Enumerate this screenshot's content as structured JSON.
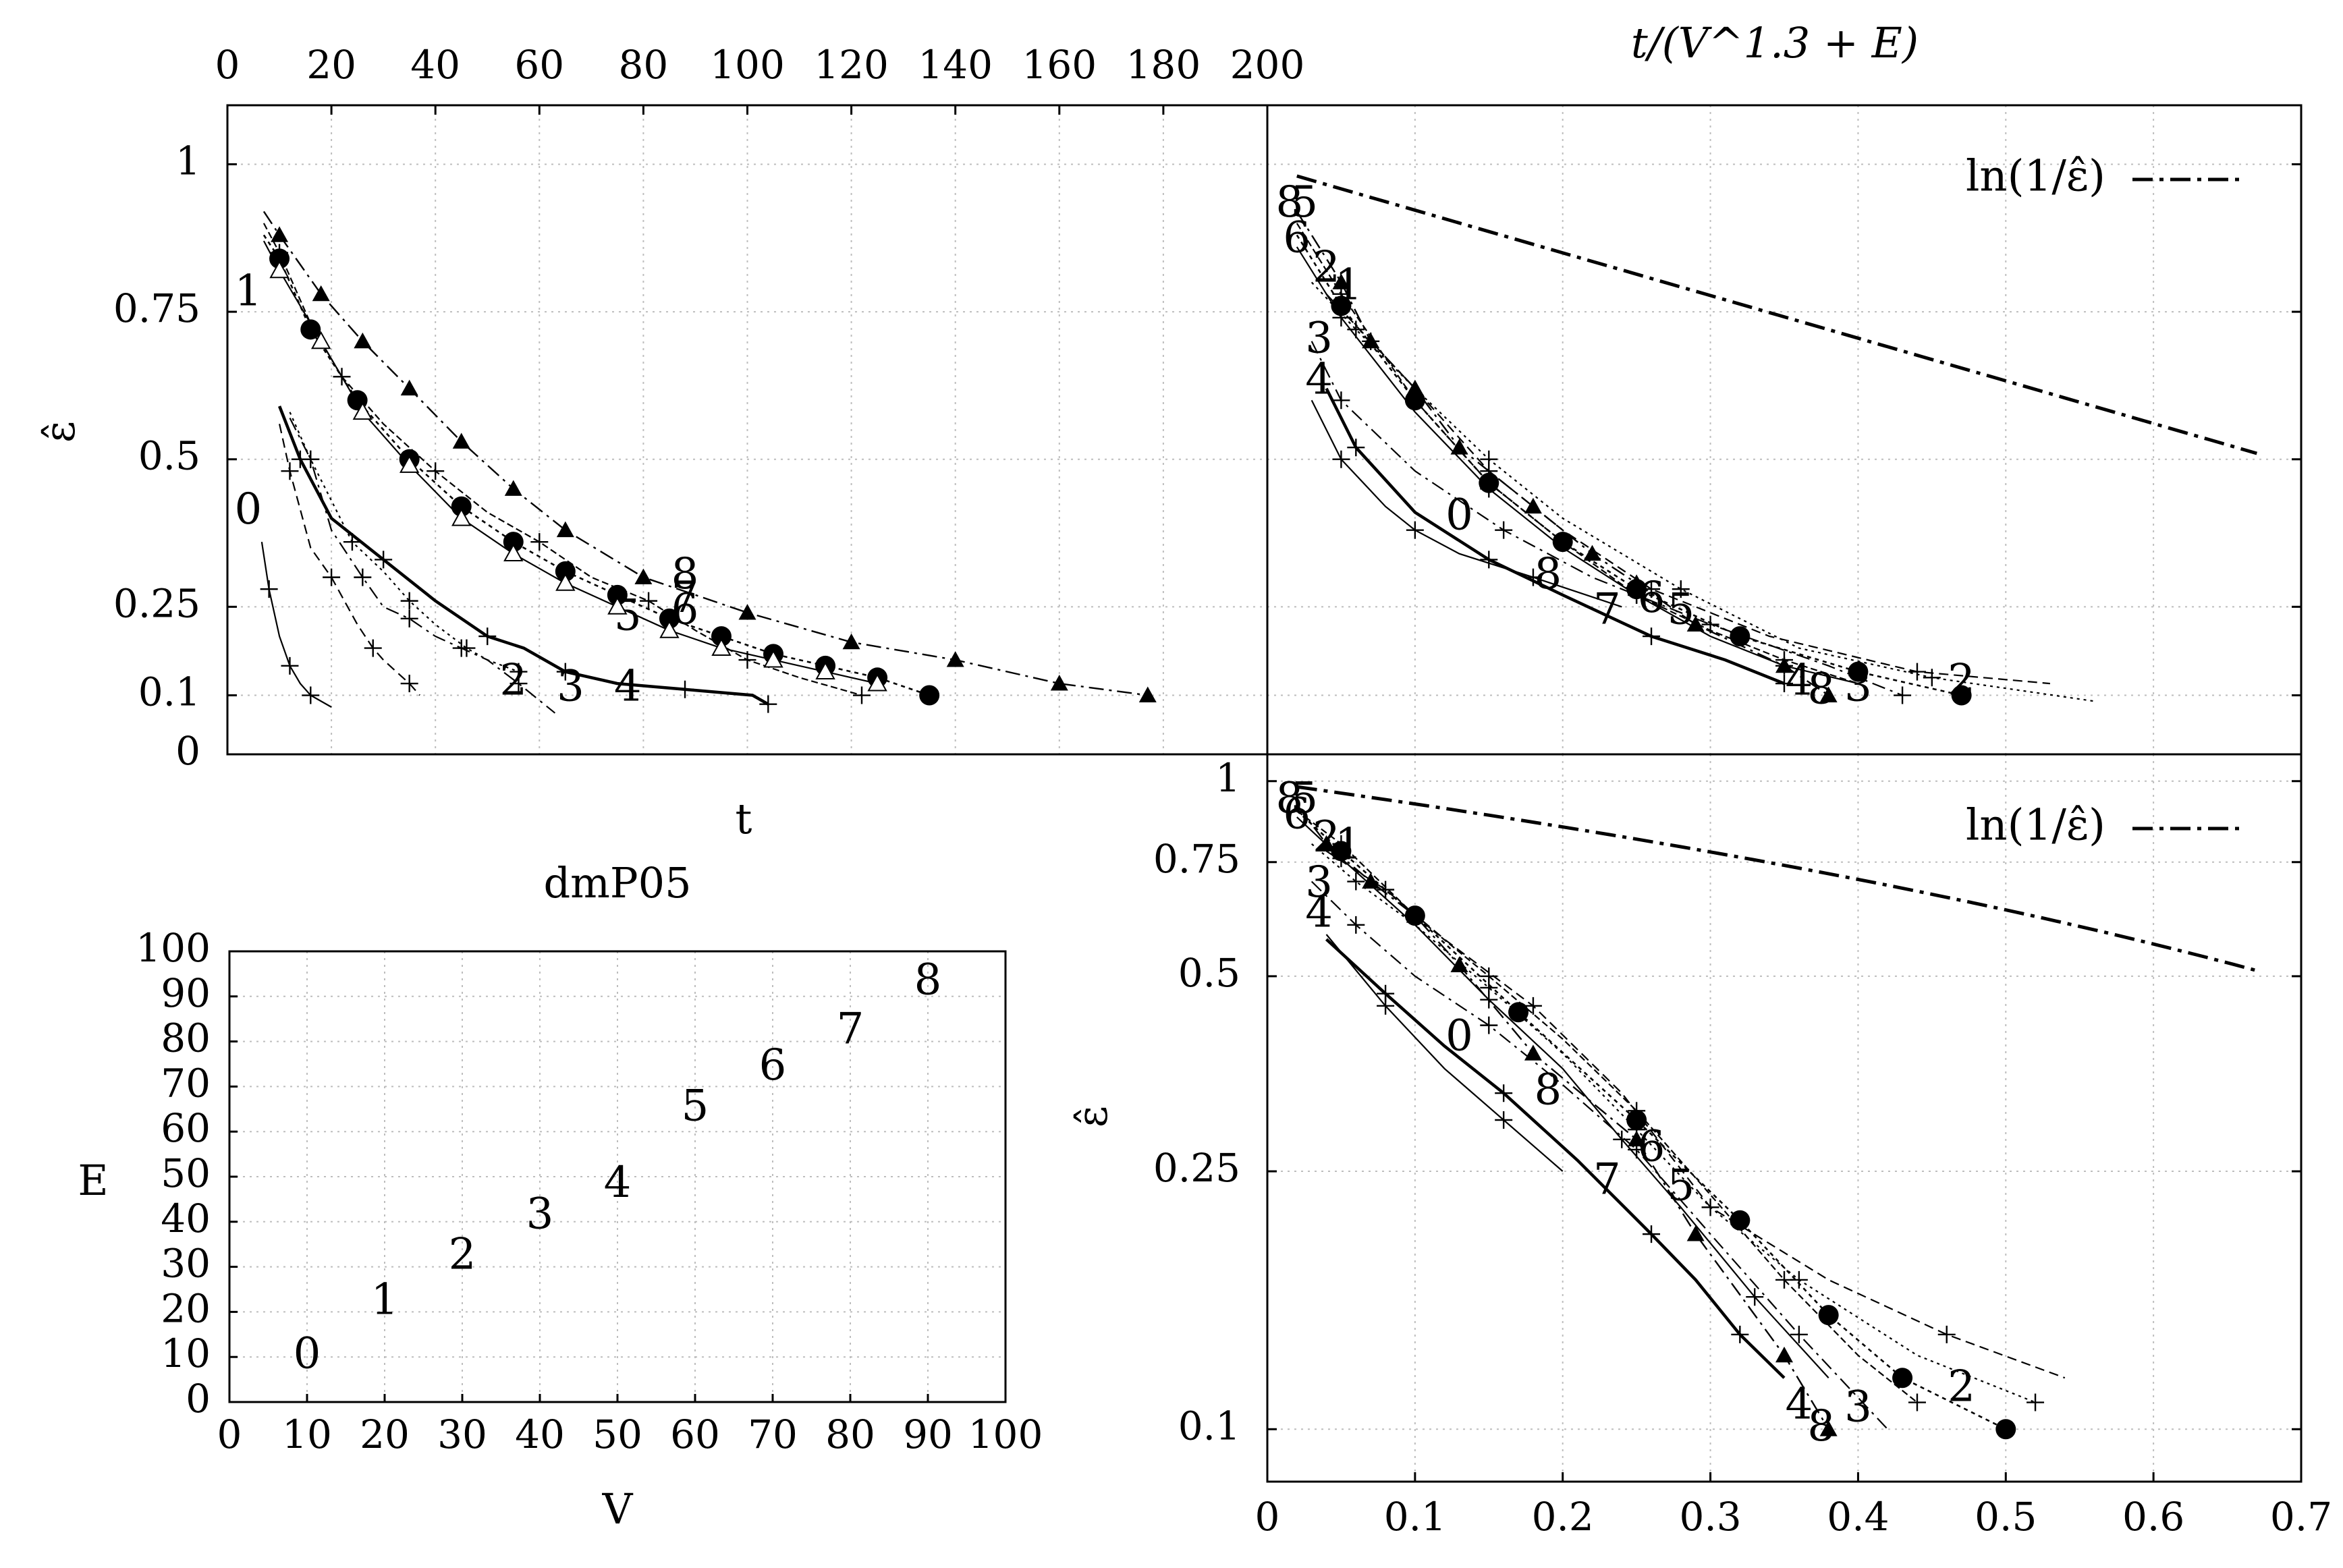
{
  "chart_data": [
    {
      "id": "tl",
      "type": "line",
      "title": "",
      "xlabel": "t",
      "ylabel": "ε̂",
      "xlim": [
        0,
        200
      ],
      "xticks": [
        0,
        20,
        40,
        60,
        80,
        100,
        120,
        140,
        160,
        180,
        200
      ],
      "xtick_labels": [
        "0",
        "20",
        "40",
        "60",
        "80",
        "100",
        "120",
        "140",
        "160",
        "180",
        "200"
      ],
      "ytick_labels": [
        "0",
        "0.1",
        "0.25",
        "0.5",
        "0.75",
        "1"
      ],
      "yticks": [
        0,
        0.1,
        0.25,
        0.5,
        0.75,
        1
      ],
      "ylim": [
        0,
        1.1
      ],
      "series": [
        {
          "name": "0",
          "x": [
            6.6,
            8,
            10,
            12,
            14,
            16,
            20
          ],
          "y": [
            0.36,
            0.28,
            0.2,
            0.15,
            0.12,
            0.1,
            0.08
          ],
          "marker": "plus",
          "label_pos": [
            4,
            0.41
          ]
        },
        {
          "name": "1",
          "x": [
            10,
            12,
            16,
            20,
            25,
            28,
            30,
            35,
            37
          ],
          "y": [
            0.56,
            0.48,
            0.35,
            0.3,
            0.22,
            0.18,
            0.16,
            0.12,
            0.1
          ],
          "marker": "plus",
          "label_pos": [
            4,
            0.78
          ]
        },
        {
          "name": "2",
          "x": [
            12,
            16,
            20,
            24,
            30,
            35,
            40,
            46,
            50,
            56
          ],
          "y": [
            0.58,
            0.5,
            0.43,
            0.36,
            0.31,
            0.26,
            0.22,
            0.18,
            0.16,
            0.14
          ],
          "marker": "plus",
          "label_pos": [
            55,
            0.12
          ]
        },
        {
          "name": "3",
          "x": [
            12,
            16,
            20,
            26,
            30,
            35,
            40,
            45,
            50,
            56,
            63
          ],
          "y": [
            0.57,
            0.5,
            0.38,
            0.3,
            0.25,
            0.23,
            0.2,
            0.18,
            0.16,
            0.12,
            0.07
          ],
          "marker": "plus",
          "label_pos": [
            66,
            0.11
          ]
        },
        {
          "name": "4",
          "x": [
            10,
            14,
            20,
            30,
            40,
            50,
            57,
            65,
            75,
            88,
            101,
            104
          ],
          "y": [
            0.59,
            0.5,
            0.4,
            0.33,
            0.26,
            0.2,
            0.18,
            0.14,
            0.12,
            0.11,
            0.1,
            0.085
          ],
          "marker": "plus",
          "label_pos": [
            77,
            0.11
          ]
        },
        {
          "name": "5",
          "x": [
            7,
            10,
            16,
            22,
            30,
            40,
            50,
            60,
            70,
            81,
            90,
            100,
            110,
            122
          ],
          "y": [
            0.9,
            0.85,
            0.73,
            0.64,
            0.56,
            0.48,
            0.41,
            0.36,
            0.3,
            0.26,
            0.21,
            0.16,
            0.13,
            0.1
          ],
          "marker": "plus",
          "label_pos": [
            77,
            0.23
          ]
        },
        {
          "name": "6",
          "x": [
            7,
            10,
            16,
            25,
            35,
            45,
            55,
            65,
            75,
            85,
            95,
            105,
            115,
            125,
            135
          ],
          "y": [
            0.88,
            0.84,
            0.72,
            0.6,
            0.5,
            0.42,
            0.36,
            0.31,
            0.27,
            0.23,
            0.2,
            0.17,
            0.15,
            0.13,
            0.1
          ],
          "marker": "circle",
          "label_pos": [
            88,
            0.24
          ]
        },
        {
          "name": "7",
          "x": [
            7,
            10,
            18,
            26,
            35,
            45,
            55,
            65,
            75,
            85,
            95,
            105,
            115,
            125
          ],
          "y": [
            0.87,
            0.82,
            0.7,
            0.58,
            0.49,
            0.4,
            0.34,
            0.29,
            0.25,
            0.21,
            0.18,
            0.16,
            0.14,
            0.12
          ],
          "marker": "triangle-open",
          "label_pos": [
            88,
            0.26
          ]
        },
        {
          "name": "8",
          "x": [
            7,
            10,
            18,
            26,
            35,
            45,
            55,
            65,
            80,
            100,
            120,
            140,
            160,
            177
          ],
          "y": [
            0.92,
            0.88,
            0.78,
            0.7,
            0.62,
            0.53,
            0.45,
            0.38,
            0.3,
            0.24,
            0.19,
            0.16,
            0.12,
            0.1
          ],
          "marker": "triangle",
          "label_pos": [
            88,
            0.3
          ]
        }
      ]
    },
    {
      "id": "tr",
      "type": "line",
      "title": "t/(V^1.3 + E)",
      "xlabel": "",
      "ylabel": "",
      "xlim": [
        0,
        0.7
      ],
      "ylim": [
        0,
        1.1
      ],
      "yticks": [
        0,
        0.1,
        0.25,
        0.5,
        0.75,
        1
      ],
      "legend": [
        {
          "label": "ln(1/ε̂)",
          "style": "dash-dot"
        }
      ],
      "reference": {
        "name": "ln(1/ε̂)",
        "x": [
          0.02,
          0.67
        ],
        "y": [
          0.98,
          0.51
        ]
      },
      "series": [
        {
          "name": "0",
          "x": [
            0.03,
            0.05,
            0.08,
            0.1,
            0.13,
            0.18,
            0.24
          ],
          "y": [
            0.6,
            0.5,
            0.42,
            0.38,
            0.34,
            0.3,
            0.25
          ],
          "label_pos": [
            0.13,
            0.4
          ]
        },
        {
          "name": "1",
          "x": [
            0.04,
            0.07,
            0.1,
            0.15,
            0.2,
            0.26,
            0.34,
            0.44,
            0.53
          ],
          "y": [
            0.78,
            0.7,
            0.62,
            0.48,
            0.38,
            0.28,
            0.2,
            0.14,
            0.12
          ],
          "label_pos": [
            0.055,
            0.79
          ]
        },
        {
          "name": "2",
          "x": [
            0.03,
            0.06,
            0.1,
            0.15,
            0.2,
            0.28,
            0.36,
            0.45,
            0.56
          ],
          "y": [
            0.8,
            0.72,
            0.62,
            0.5,
            0.4,
            0.28,
            0.18,
            0.13,
            0.09
          ],
          "label_pos": [
            0.04,
            0.82
          ]
        },
        {
          "name": "3",
          "x": [
            0.03,
            0.05,
            0.1,
            0.16,
            0.22,
            0.3,
            0.38,
            0.43
          ],
          "y": [
            0.7,
            0.6,
            0.48,
            0.38,
            0.3,
            0.22,
            0.15,
            0.1
          ],
          "label_pos": [
            0.035,
            0.7
          ]
        },
        {
          "name": "4",
          "x": [
            0.04,
            0.06,
            0.1,
            0.15,
            0.2,
            0.26,
            0.31,
            0.35
          ],
          "y": [
            0.62,
            0.52,
            0.41,
            0.33,
            0.27,
            0.2,
            0.16,
            0.12
          ],
          "label_pos": [
            0.035,
            0.63
          ]
        },
        {
          "name": "5",
          "x": [
            0.02,
            0.05,
            0.1,
            0.15,
            0.2,
            0.25,
            0.3,
            0.35,
            0.4
          ],
          "y": [
            0.9,
            0.78,
            0.6,
            0.46,
            0.36,
            0.27,
            0.21,
            0.16,
            0.12
          ],
          "label_pos": [
            0.025,
            0.93
          ]
        },
        {
          "name": "6",
          "x": [
            0.02,
            0.05,
            0.1,
            0.15,
            0.2,
            0.25,
            0.32,
            0.4,
            0.47
          ],
          "y": [
            0.88,
            0.76,
            0.6,
            0.46,
            0.36,
            0.28,
            0.2,
            0.14,
            0.1
          ],
          "marker": "circle",
          "label_pos": [
            0.02,
            0.87
          ]
        },
        {
          "name": "7",
          "x": [
            0.02,
            0.05,
            0.1,
            0.15,
            0.2,
            0.25,
            0.3,
            0.35,
            0.4
          ],
          "y": [
            0.86,
            0.74,
            0.58,
            0.45,
            0.35,
            0.27,
            0.2,
            0.15,
            0.12
          ],
          "label_pos": [
            0.23,
            0.24
          ]
        },
        {
          "name": "8",
          "x": [
            0.02,
            0.05,
            0.07,
            0.1,
            0.13,
            0.18,
            0.22,
            0.25,
            0.29,
            0.35,
            0.38
          ],
          "y": [
            0.92,
            0.8,
            0.7,
            0.62,
            0.52,
            0.42,
            0.34,
            0.29,
            0.22,
            0.15,
            0.1
          ],
          "marker": "triangle",
          "label_pos": [
            0.19,
            0.3
          ]
        }
      ],
      "extra_labels": [
        {
          "text": "8",
          "x": 0.015,
          "y": 0.93
        },
        {
          "text": "6",
          "x": 0.26,
          "y": 0.26
        },
        {
          "text": "5",
          "x": 0.28,
          "y": 0.24
        },
        {
          "text": "4",
          "x": 0.36,
          "y": 0.12
        },
        {
          "text": "8",
          "x": 0.375,
          "y": 0.105
        },
        {
          "text": "3",
          "x": 0.4,
          "y": 0.11
        },
        {
          "text": "2",
          "x": 0.47,
          "y": 0.12
        }
      ]
    },
    {
      "id": "bl",
      "type": "scatter",
      "title": "dmP05",
      "xlabel": "V",
      "ylabel": "E",
      "xlim": [
        0,
        100
      ],
      "ylim": [
        0,
        100
      ],
      "xticks": [
        0,
        10,
        20,
        30,
        40,
        50,
        60,
        70,
        80,
        90,
        100
      ],
      "yticks": [
        0,
        10,
        20,
        30,
        40,
        50,
        60,
        70,
        80,
        90,
        100
      ],
      "points": [
        {
          "label": "0",
          "x": 10,
          "y": 10
        },
        {
          "label": "1",
          "x": 20,
          "y": 22
        },
        {
          "label": "2",
          "x": 30,
          "y": 32
        },
        {
          "label": "3",
          "x": 40,
          "y": 41
        },
        {
          "label": "4",
          "x": 50,
          "y": 48
        },
        {
          "label": "5",
          "x": 60,
          "y": 65
        },
        {
          "label": "6",
          "x": 70,
          "y": 74
        },
        {
          "label": "7",
          "x": 80,
          "y": 82
        },
        {
          "label": "8",
          "x": 90,
          "y": 93
        }
      ]
    },
    {
      "id": "br",
      "type": "line",
      "title": "",
      "xlabel": "",
      "ylabel": "ε̂",
      "xlim": [
        0,
        0.7
      ],
      "xticks": [
        0,
        0.1,
        0.2,
        0.3,
        0.4,
        0.5,
        0.6,
        0.7
      ],
      "yscale": "log",
      "ylim": [
        0.083,
        1.1
      ],
      "yticks": [
        0.1,
        0.25,
        0.5,
        0.75,
        1
      ],
      "legend": [
        {
          "label": "ln(1/ε̂)",
          "style": "dash-dot"
        }
      ],
      "reference": {
        "name": "ln(1/ε̂)",
        "x": [
          0.02,
          0.67
        ],
        "y": [
          0.98,
          0.51
        ]
      },
      "series": [
        {
          "name": "0",
          "x": [
            0.04,
            0.08,
            0.12,
            0.16,
            0.2
          ],
          "y": [
            0.58,
            0.45,
            0.36,
            0.3,
            0.25
          ],
          "label_pos": [
            0.13,
            0.4
          ]
        },
        {
          "name": "1",
          "x": [
            0.04,
            0.08,
            0.12,
            0.18,
            0.24,
            0.3,
            0.38,
            0.46,
            0.54
          ],
          "y": [
            0.78,
            0.68,
            0.57,
            0.45,
            0.33,
            0.22,
            0.17,
            0.14,
            0.12
          ],
          "label_pos": [
            0.055,
            0.79
          ]
        },
        {
          "name": "2",
          "x": [
            0.03,
            0.06,
            0.1,
            0.15,
            0.2,
            0.25,
            0.3,
            0.36,
            0.44,
            0.52
          ],
          "y": [
            0.8,
            0.7,
            0.6,
            0.48,
            0.38,
            0.29,
            0.22,
            0.17,
            0.13,
            0.11
          ],
          "label_pos": [
            0.04,
            0.81
          ]
        },
        {
          "name": "3",
          "x": [
            0.03,
            0.06,
            0.1,
            0.15,
            0.2,
            0.25,
            0.3,
            0.36,
            0.42
          ],
          "y": [
            0.7,
            0.6,
            0.5,
            0.42,
            0.34,
            0.27,
            0.2,
            0.14,
            0.1
          ],
          "label_pos": [
            0.035,
            0.69
          ]
        },
        {
          "name": "4",
          "x": [
            0.04,
            0.08,
            0.12,
            0.16,
            0.21,
            0.26,
            0.29,
            0.32,
            0.35
          ],
          "y": [
            0.57,
            0.47,
            0.39,
            0.33,
            0.26,
            0.2,
            0.17,
            0.14,
            0.12
          ],
          "label_pos": [
            0.035,
            0.62
          ]
        },
        {
          "name": "5",
          "x": [
            0.02,
            0.05,
            0.1,
            0.15,
            0.2,
            0.25,
            0.3,
            0.35,
            0.4,
            0.44
          ],
          "y": [
            0.9,
            0.8,
            0.62,
            0.5,
            0.4,
            0.31,
            0.23,
            0.17,
            0.13,
            0.11
          ],
          "label_pos": [
            0.025,
            0.93
          ]
        },
        {
          "name": "6",
          "x": [
            0.02,
            0.05,
            0.1,
            0.17,
            0.25,
            0.32,
            0.38,
            0.43,
            0.5
          ],
          "y": [
            0.9,
            0.78,
            0.62,
            0.44,
            0.3,
            0.21,
            0.15,
            0.12,
            0.1
          ],
          "marker": "circle",
          "label_pos": [
            0.02,
            0.88
          ]
        },
        {
          "name": "7",
          "x": [
            0.02,
            0.05,
            0.1,
            0.15,
            0.2,
            0.24,
            0.28,
            0.33,
            0.38
          ],
          "y": [
            0.88,
            0.76,
            0.6,
            0.46,
            0.36,
            0.28,
            0.22,
            0.16,
            0.12
          ],
          "label_pos": [
            0.23,
            0.24
          ]
        },
        {
          "name": "8",
          "x": [
            0.02,
            0.04,
            0.07,
            0.1,
            0.13,
            0.18,
            0.25,
            0.29,
            0.35,
            0.38
          ],
          "y": [
            0.92,
            0.8,
            0.7,
            0.62,
            0.52,
            0.38,
            0.28,
            0.2,
            0.13,
            0.1
          ],
          "marker": "triangle",
          "label_pos": [
            0.19,
            0.33
          ]
        }
      ],
      "extra_labels": [
        {
          "text": "8",
          "x": 0.015,
          "y": 0.93
        },
        {
          "text": "6",
          "x": 0.26,
          "y": 0.27
        },
        {
          "text": "5",
          "x": 0.28,
          "y": 0.235
        },
        {
          "text": "4",
          "x": 0.36,
          "y": 0.108
        },
        {
          "text": "8",
          "x": 0.375,
          "y": 0.1
        },
        {
          "text": "3",
          "x": 0.4,
          "y": 0.107
        },
        {
          "text": "2",
          "x": 0.47,
          "y": 0.115
        }
      ]
    }
  ]
}
